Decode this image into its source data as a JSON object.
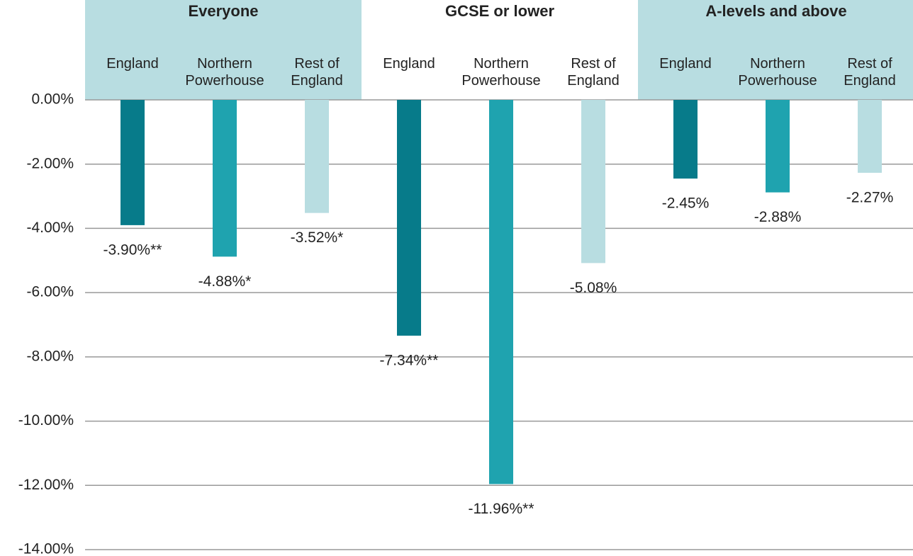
{
  "chart_data": {
    "type": "bar",
    "categories": [
      "Everyone",
      "GCSE or lower",
      "A-levels and above"
    ],
    "group_header_colors": [
      "#b8dde1",
      "#ffffff",
      "#b8dde1"
    ],
    "series": [
      {
        "name": "England",
        "color": "#077b8a",
        "values": [
          -3.9,
          -7.34,
          -2.45
        ],
        "value_labels": [
          "-3.90%**",
          "-7.34%**",
          "-2.45%"
        ]
      },
      {
        "name": "Northern Powerhouse",
        "color": "#1fa3af",
        "values": [
          -4.88,
          -11.96,
          -2.88
        ],
        "value_labels": [
          "-4.88%*",
          "-11.96%**",
          "-2.88%"
        ]
      },
      {
        "name": "Rest of England",
        "color": "#b8dde1",
        "values": [
          -3.52,
          -5.08,
          -2.27
        ],
        "value_labels": [
          "-3.52%*",
          "-5.08%",
          "-2.27%"
        ]
      }
    ],
    "ylim": [
      -14,
      0
    ],
    "yticks": [
      {
        "value": 0,
        "label": "0.00%"
      },
      {
        "value": -2,
        "label": "-2.00%"
      },
      {
        "value": -4,
        "label": "-4.00%"
      },
      {
        "value": -6,
        "label": "-6.00%"
      },
      {
        "value": -8,
        "label": "-8.00%"
      },
      {
        "value": -10,
        "label": "-10.00%"
      },
      {
        "value": -12,
        "label": "-12.00%"
      },
      {
        "value": -14,
        "label": "-14.00%"
      }
    ],
    "grid": true
  }
}
